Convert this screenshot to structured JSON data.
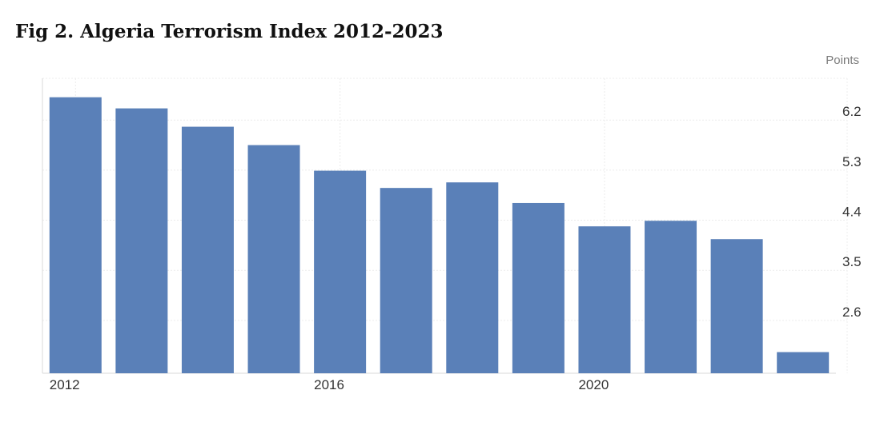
{
  "title": "Fig 2. Algeria Terrorism Index 2012-2023",
  "chart_data": {
    "type": "bar",
    "title": "Fig 2. Algeria Terrorism Index 2012-2023",
    "unit": "Points",
    "xlabel": "",
    "ylabel": "",
    "categories": [
      "2012",
      "2013",
      "2014",
      "2015",
      "2016",
      "2017",
      "2018",
      "2019",
      "2020",
      "2021",
      "2022",
      "2023"
    ],
    "values": [
      6.61,
      6.41,
      6.08,
      5.75,
      5.29,
      4.98,
      5.08,
      4.71,
      4.29,
      4.39,
      4.06,
      2.03
    ],
    "x_tick_labels": [
      "2012",
      "2016",
      "2020"
    ],
    "y_ticks": [
      2.6,
      3.5,
      4.4,
      5.3,
      6.2
    ],
    "y_tick_labels": [
      "2.6",
      "3.5",
      "4.4",
      "5.3",
      "6.2"
    ],
    "ylim": [
      1.65,
      6.95
    ],
    "y_axis_side": "right",
    "grid": true,
    "bar_color": "#5a80b8"
  }
}
